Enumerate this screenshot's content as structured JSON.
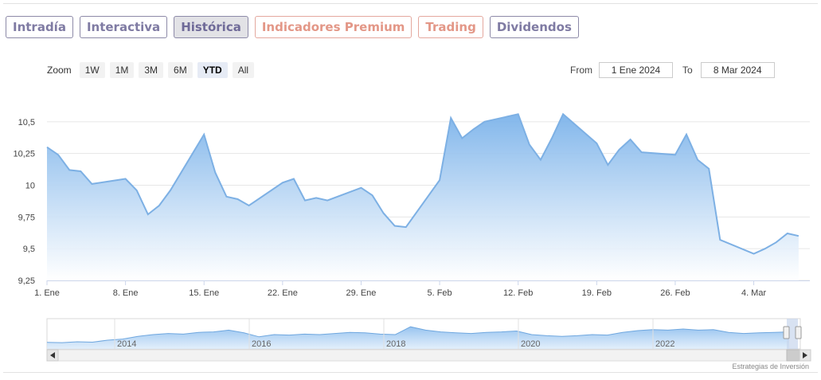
{
  "tabs": [
    {
      "label": "Intradía",
      "style": "normal"
    },
    {
      "label": "Interactiva",
      "style": "normal"
    },
    {
      "label": "Histórica",
      "style": "active"
    },
    {
      "label": "Indicadores Premium",
      "style": "orange"
    },
    {
      "label": "Trading",
      "style": "orange"
    },
    {
      "label": "Dividendos",
      "style": "normal"
    }
  ],
  "zoom": {
    "label": "Zoom",
    "buttons": [
      {
        "label": "1W",
        "selected": false
      },
      {
        "label": "1M",
        "selected": false
      },
      {
        "label": "3M",
        "selected": false
      },
      {
        "label": "6M",
        "selected": false
      },
      {
        "label": "YTD",
        "selected": true
      },
      {
        "label": "All",
        "selected": false
      }
    ]
  },
  "range": {
    "from_label": "From",
    "from_value": "1 Ene 2024",
    "to_label": "To",
    "to_value": "8 Mar 2024"
  },
  "credit": "Estrategias de Inversión",
  "colors": {
    "line": "#7db0e4",
    "fill_top": "#7cb3ea",
    "fill_bottom": "#ffffff",
    "grid": "#e6e6e6",
    "tab_text": "#7f7ba3",
    "tab_orange": "#e39787"
  },
  "chart_data": {
    "type": "area",
    "title": "",
    "xlabel": "",
    "ylabel": "",
    "ylim": [
      9.25,
      10.75
    ],
    "yticks": [
      9.25,
      9.5,
      9.75,
      10,
      10.25,
      10.5
    ],
    "ytick_labels": [
      "9,25",
      "9,5",
      "9,75",
      "10",
      "10,25",
      "10,5"
    ],
    "xlim": [
      "2024-01-01",
      "2024-03-09"
    ],
    "xticks": [
      "2024-01-01",
      "2024-01-08",
      "2024-01-15",
      "2024-01-22",
      "2024-01-29",
      "2024-02-05",
      "2024-02-12",
      "2024-02-19",
      "2024-02-26",
      "2024-03-04"
    ],
    "xtick_labels": [
      "1. Ene",
      "8. Ene",
      "15. Ene",
      "22. Ene",
      "29. Ene",
      "5. Feb",
      "12. Feb",
      "19. Feb",
      "26. Feb",
      "4. Mar"
    ],
    "grid": true,
    "series": [
      {
        "points": [
          [
            "2024-01-01",
            10.3
          ],
          [
            "2024-01-02",
            10.24
          ],
          [
            "2024-01-03",
            10.12
          ],
          [
            "2024-01-04",
            10.11
          ],
          [
            "2024-01-05",
            10.01
          ],
          [
            "2024-01-08",
            10.05
          ],
          [
            "2024-01-09",
            9.96
          ],
          [
            "2024-01-10",
            9.77
          ],
          [
            "2024-01-11",
            9.84
          ],
          [
            "2024-01-12",
            9.96
          ],
          [
            "2024-01-15",
            10.4
          ],
          [
            "2024-01-16",
            10.1
          ],
          [
            "2024-01-17",
            9.91
          ],
          [
            "2024-01-18",
            9.89
          ],
          [
            "2024-01-19",
            9.84
          ],
          [
            "2024-01-22",
            10.02
          ],
          [
            "2024-01-23",
            10.05
          ],
          [
            "2024-01-24",
            9.88
          ],
          [
            "2024-01-25",
            9.9
          ],
          [
            "2024-01-26",
            9.88
          ],
          [
            "2024-01-29",
            9.98
          ],
          [
            "2024-01-30",
            9.92
          ],
          [
            "2024-01-31",
            9.78
          ],
          [
            "2024-02-01",
            9.68
          ],
          [
            "2024-02-02",
            9.67
          ],
          [
            "2024-02-05",
            10.04
          ],
          [
            "2024-02-06",
            10.53
          ],
          [
            "2024-02-07",
            10.37
          ],
          [
            "2024-02-08",
            10.44
          ],
          [
            "2024-02-09",
            10.5
          ],
          [
            "2024-02-12",
            10.56
          ],
          [
            "2024-02-13",
            10.32
          ],
          [
            "2024-02-14",
            10.2
          ],
          [
            "2024-02-15",
            10.37
          ],
          [
            "2024-02-16",
            10.56
          ],
          [
            "2024-02-19",
            10.33
          ],
          [
            "2024-02-20",
            10.16
          ],
          [
            "2024-02-21",
            10.28
          ],
          [
            "2024-02-22",
            10.36
          ],
          [
            "2024-02-23",
            10.26
          ],
          [
            "2024-02-26",
            10.24
          ],
          [
            "2024-02-27",
            10.4
          ],
          [
            "2024-02-28",
            10.2
          ],
          [
            "2024-02-29",
            10.13
          ],
          [
            "2024-03-01",
            9.57
          ],
          [
            "2024-03-04",
            9.46
          ],
          [
            "2024-03-05",
            9.5
          ],
          [
            "2024-03-06",
            9.55
          ],
          [
            "2024-03-07",
            9.62
          ],
          [
            "2024-03-08",
            9.6
          ]
        ]
      }
    ],
    "navigator": {
      "year_labels": [
        "2014",
        "2016",
        "2018",
        "2020",
        "2022"
      ],
      "profile": [
        0.15,
        0.14,
        0.18,
        0.16,
        0.25,
        0.3,
        0.42,
        0.5,
        0.55,
        0.52,
        0.6,
        0.62,
        0.7,
        0.58,
        0.4,
        0.5,
        0.48,
        0.52,
        0.5,
        0.55,
        0.6,
        0.58,
        0.52,
        0.5,
        0.85,
        0.7,
        0.62,
        0.58,
        0.55,
        0.6,
        0.62,
        0.66,
        0.5,
        0.45,
        0.42,
        0.45,
        0.5,
        0.48,
        0.6,
        0.68,
        0.72,
        0.7,
        0.75,
        0.7,
        0.72,
        0.6,
        0.55,
        0.58,
        0.6,
        0.62
      ]
    }
  }
}
